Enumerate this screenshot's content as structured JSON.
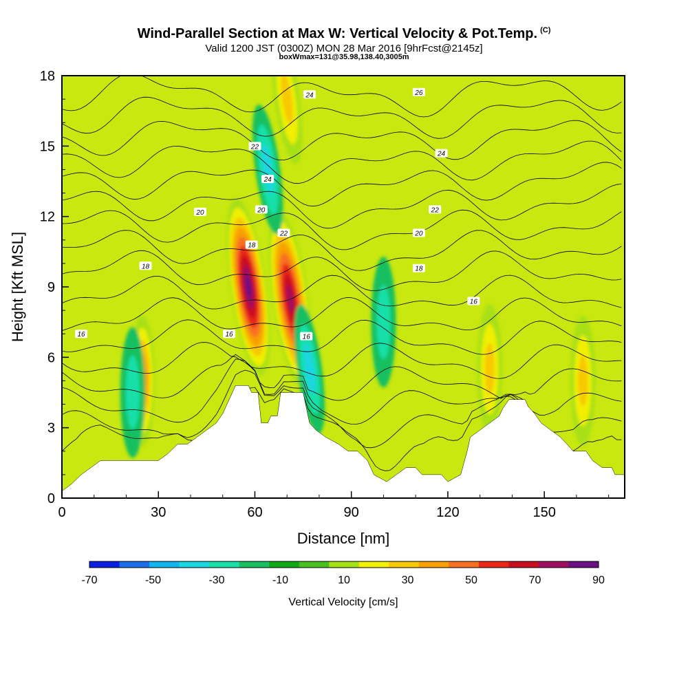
{
  "header": {
    "title": "Wind-Parallel Section at Max W: Vertical Velocity & Pot.Temp.",
    "copyright": "(C)",
    "subtitle": "Valid 1200 JST (0300Z) MON 28 Mar 2016 [9hrFcst@2145z]",
    "subsubtitle": "boxWmax=131@35.98,138.40,3005m"
  },
  "chart_data": {
    "type": "heatmap",
    "xlabel": "Distance [nm]",
    "ylabel": "Height [Kft MSL]",
    "xlim": [
      0,
      175
    ],
    "ylim": [
      0,
      18
    ],
    "x_ticks": [
      "0",
      "30",
      "60",
      "90",
      "120",
      "150"
    ],
    "y_ticks": [
      "0",
      "3",
      "6",
      "9",
      "12",
      "15",
      "18"
    ],
    "colorbar": {
      "label": "Vertical Velocity [cm/s]",
      "tick_labels": [
        "-70",
        "-50",
        "-30",
        "-10",
        "10",
        "30",
        "50",
        "70",
        "90"
      ],
      "levels": [
        -70,
        -60,
        -50,
        -40,
        -30,
        -20,
        -10,
        0,
        10,
        20,
        30,
        40,
        50,
        60,
        70,
        80,
        90
      ],
      "colors": [
        "#0a1fe0",
        "#1c6ee8",
        "#12b4ee",
        "#1ad6e0",
        "#18e0a8",
        "#18c060",
        "#10a818",
        "#48c020",
        "#a8e018",
        "#f0f000",
        "#f8c800",
        "#f8a000",
        "#f87020",
        "#e82818",
        "#c81020",
        "#a01060",
        "#6a1080"
      ]
    },
    "theta_contours": {
      "units": "deg C",
      "labeled_values": [
        "16",
        "18",
        "16",
        "16",
        "18",
        "20",
        "22",
        "24",
        "20",
        "22",
        "24",
        "26",
        "18",
        "20",
        "22",
        "24",
        "16"
      ]
    },
    "velocity_features": [
      {
        "x": 58,
        "y": 9.0,
        "w": 95
      },
      {
        "x": 71,
        "y": 8.5,
        "w": 80
      },
      {
        "x": 25,
        "y": 5.0,
        "w": 55
      },
      {
        "x": 133,
        "y": 5.5,
        "w": 30
      },
      {
        "x": 162,
        "y": 5.0,
        "w": 30
      },
      {
        "x": 64,
        "y": 14.0,
        "w": -35
      },
      {
        "x": 77,
        "y": 5.5,
        "w": -30
      },
      {
        "x": 22,
        "y": 4.5,
        "w": -25
      },
      {
        "x": 100,
        "y": 7.5,
        "w": -25
      },
      {
        "x": 70,
        "y": 17.0,
        "w": 35
      }
    ],
    "terrain_kft": [
      [
        0,
        0.3
      ],
      [
        3,
        0.6
      ],
      [
        6,
        1.0
      ],
      [
        9,
        1.3
      ],
      [
        12,
        1.6
      ],
      [
        15,
        1.6
      ],
      [
        18,
        1.6
      ],
      [
        21,
        1.6
      ],
      [
        24,
        1.6
      ],
      [
        27,
        1.6
      ],
      [
        30,
        1.6
      ],
      [
        33,
        1.9
      ],
      [
        36,
        2.3
      ],
      [
        39,
        2.3
      ],
      [
        42,
        2.6
      ],
      [
        45,
        2.9
      ],
      [
        48,
        3.2
      ],
      [
        50,
        3.6
      ],
      [
        52,
        4.2
      ],
      [
        53,
        4.5
      ],
      [
        54,
        4.8
      ],
      [
        58,
        4.8
      ],
      [
        59,
        4.5
      ],
      [
        61,
        4.5
      ],
      [
        62,
        3.2
      ],
      [
        64,
        3.2
      ],
      [
        65,
        3.5
      ],
      [
        67,
        3.5
      ],
      [
        68,
        4.5
      ],
      [
        73,
        4.5
      ],
      [
        75,
        4.5
      ],
      [
        77,
        3.2
      ],
      [
        79,
        2.9
      ],
      [
        82,
        2.6
      ],
      [
        86,
        2.3
      ],
      [
        89,
        2.0
      ],
      [
        92,
        2.0
      ],
      [
        95,
        1.6
      ],
      [
        97,
        1.0
      ],
      [
        101,
        0.7
      ],
      [
        104,
        1.0
      ],
      [
        107,
        1.3
      ],
      [
        110,
        1.3
      ],
      [
        112,
        1.0
      ],
      [
        115,
        1.0
      ],
      [
        118,
        1.0
      ],
      [
        120,
        0.7
      ],
      [
        124,
        1.0
      ],
      [
        126,
        2.0
      ],
      [
        127,
        2.6
      ],
      [
        130,
        2.9
      ],
      [
        133,
        3.2
      ],
      [
        136,
        3.5
      ],
      [
        137,
        3.8
      ],
      [
        139,
        4.2
      ],
      [
        144,
        4.2
      ],
      [
        145,
        3.9
      ],
      [
        147,
        3.6
      ],
      [
        149,
        3.2
      ],
      [
        152,
        2.9
      ],
      [
        155,
        2.6
      ],
      [
        157,
        2.3
      ],
      [
        159,
        2.0
      ],
      [
        163,
        2.0
      ],
      [
        165,
        1.6
      ],
      [
        168,
        1.3
      ],
      [
        171,
        1.3
      ],
      [
        172,
        1.0
      ],
      [
        175,
        1.0
      ]
    ]
  },
  "colors": {
    "background": "#c8e810",
    "contour": "#000000",
    "frame": "#000000"
  }
}
